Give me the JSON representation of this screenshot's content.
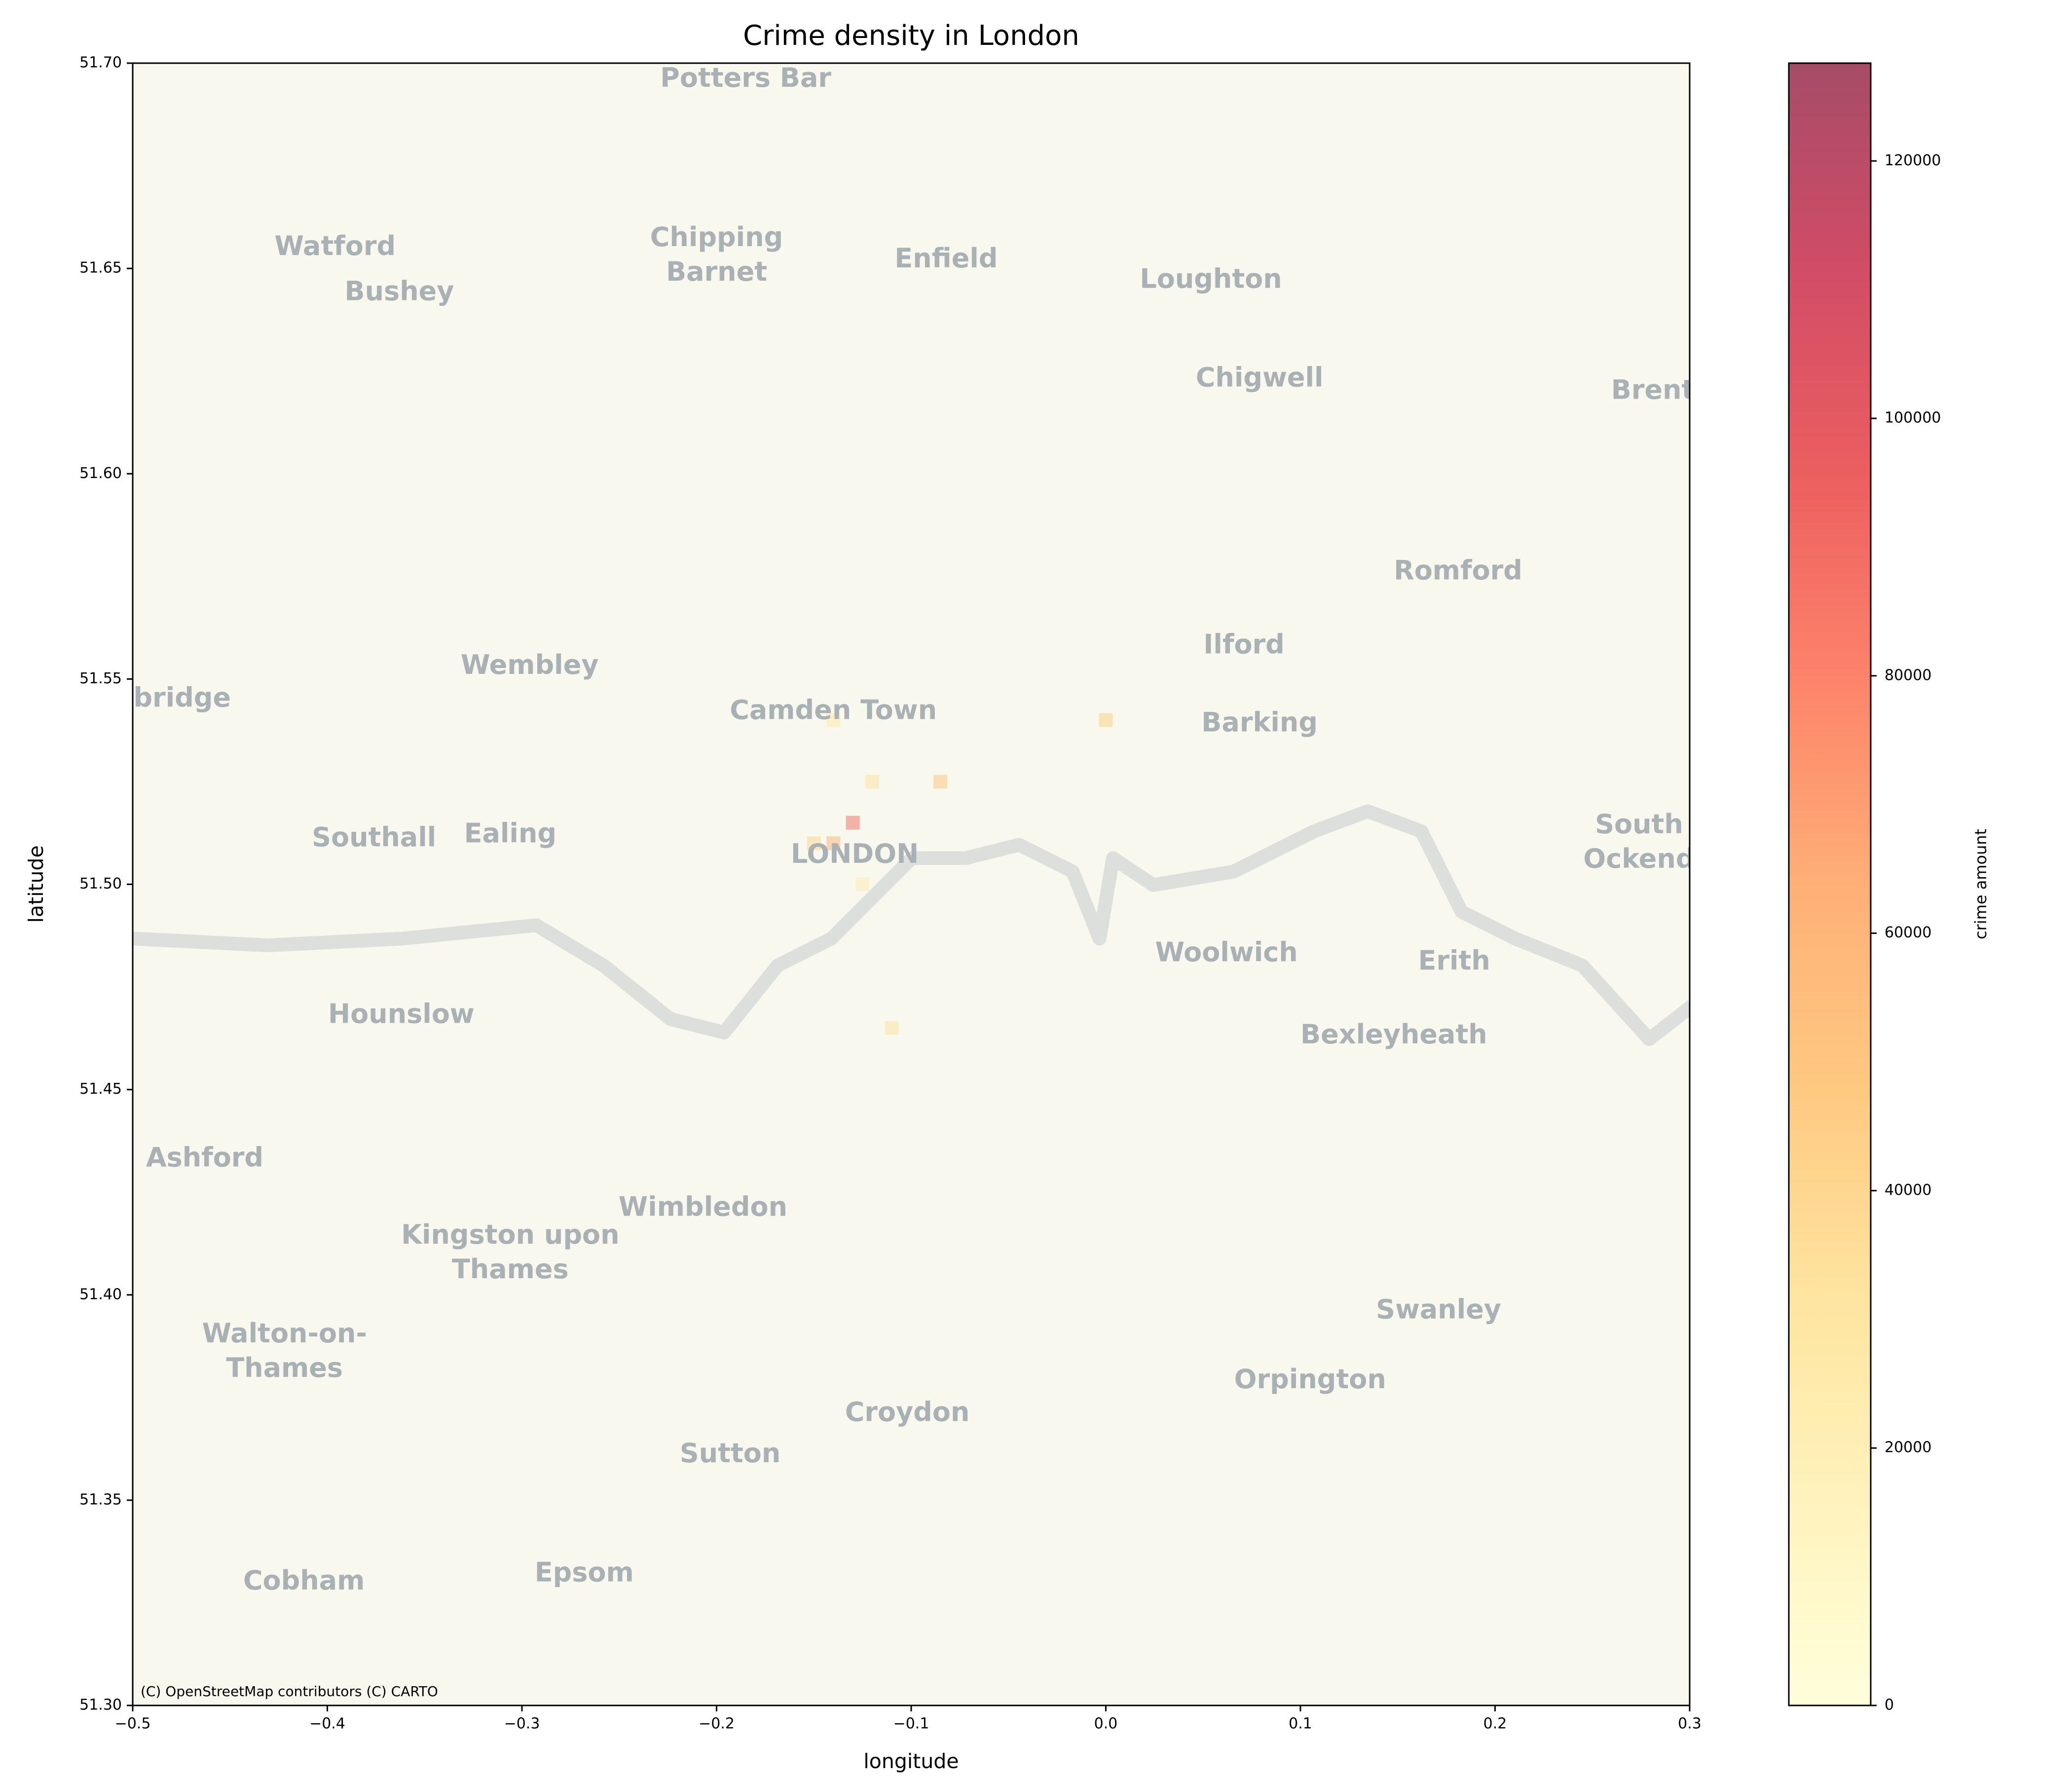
{
  "chart_data": {
    "type": "hist2d",
    "title": "Crime density in London",
    "x_label": "longitude",
    "y_label": "latitude",
    "xlim": [
      -0.5,
      0.3
    ],
    "ylim": [
      51.3,
      51.7
    ],
    "xticks": [
      {
        "value": -0.5,
        "label": "−0.5"
      },
      {
        "value": -0.4,
        "label": "−0.4"
      },
      {
        "value": -0.3,
        "label": "−0.3"
      },
      {
        "value": -0.2,
        "label": "−0.2"
      },
      {
        "value": -0.1,
        "label": "−0.1"
      },
      {
        "value": 0,
        "label": "0.0"
      },
      0.1,
      0.2,
      0.3
    ],
    "yticks": [
      {
        "value": 51.3,
        "label": "51.30"
      },
      51.35,
      {
        "value": 51.4,
        "label": "51.40"
      },
      51.45,
      {
        "value": 51.5,
        "label": "51.50"
      },
      51.55,
      {
        "value": 51.6,
        "label": "51.60"
      },
      51.65,
      {
        "value": 51.7,
        "label": "51.70"
      }
    ],
    "cells": {
      "x": [
        -0.14,
        -0.13,
        -0.15,
        -0.12,
        -0.085,
        0.0,
        -0.11,
        -0.14,
        -0.125
      ],
      "y": [
        51.51,
        51.515,
        51.51,
        51.525,
        51.525,
        51.54,
        51.465,
        51.54,
        51.5
      ],
      "values": [
        60000,
        90000,
        40000,
        30000,
        50000,
        45000,
        30000,
        25000,
        20000
      ]
    },
    "colorbar": {
      "label": "crime amount",
      "lim": [
        0,
        127600
      ],
      "ticks": [
        0,
        20000,
        40000,
        60000,
        80000,
        100000,
        120000
      ],
      "colors": [
        "#ffffcc",
        "#ffeda0",
        "#fed976",
        "#feb24c",
        "#fd8d3c",
        "#fc4e2a",
        "#e31a1c",
        "#bd0026",
        "#800026"
      ]
    },
    "attribution": "(C) OpenStreetMap contributors (C) CARTO",
    "map_labels": [
      {
        "lines": [
          "Potters Bar"
        ],
        "lon": -0.185,
        "lat": 51.696
      },
      {
        "lines": [
          "Watford"
        ],
        "lon": -0.396,
        "lat": 51.655
      },
      {
        "lines": [
          "Bushey"
        ],
        "lon": -0.363,
        "lat": 51.644
      },
      {
        "lines": [
          "Chipping",
          "Barnet"
        ],
        "lon": -0.2,
        "lat": 51.653
      },
      {
        "lines": [
          "Enfield"
        ],
        "lon": -0.082,
        "lat": 51.652
      },
      {
        "lines": [
          "Loughton"
        ],
        "lon": 0.054,
        "lat": 51.647
      },
      {
        "lines": [
          "Chigwell"
        ],
        "lon": 0.079,
        "lat": 51.623
      },
      {
        "lines": [
          "Brent"
        ],
        "lon": 0.281,
        "lat": 51.62
      },
      {
        "lines": [
          "Romford"
        ],
        "lon": 0.181,
        "lat": 51.576
      },
      {
        "lines": [
          "Ilford"
        ],
        "lon": 0.071,
        "lat": 51.558
      },
      {
        "lines": [
          "Wembley"
        ],
        "lon": -0.296,
        "lat": 51.553
      },
      {
        "lines": [
          "Camden Town"
        ],
        "lon": -0.14,
        "lat": 51.542
      },
      {
        "lines": [
          "Barking"
        ],
        "lon": 0.079,
        "lat": 51.539
      },
      {
        "lines": [
          "xbridge"
        ],
        "lon": -0.479,
        "lat": 51.545
      },
      {
        "lines": [
          "Southall"
        ],
        "lon": -0.376,
        "lat": 51.511
      },
      {
        "lines": [
          "Ealing"
        ],
        "lon": -0.306,
        "lat": 51.512
      },
      {
        "lines": [
          "LONDON"
        ],
        "lon": -0.129,
        "lat": 51.507
      },
      {
        "lines": [
          "South",
          "Ockend"
        ],
        "lon": 0.274,
        "lat": 51.51
      },
      {
        "lines": [
          "Woolwich"
        ],
        "lon": 0.062,
        "lat": 51.483
      },
      {
        "lines": [
          "Erith"
        ],
        "lon": 0.179,
        "lat": 51.481
      },
      {
        "lines": [
          "Hounslow"
        ],
        "lon": -0.362,
        "lat": 51.468
      },
      {
        "lines": [
          "Bexleyheath"
        ],
        "lon": 0.148,
        "lat": 51.463
      },
      {
        "lines": [
          "Ashford"
        ],
        "lon": -0.463,
        "lat": 51.433
      },
      {
        "lines": [
          "Wimbledon"
        ],
        "lon": -0.207,
        "lat": 51.421
      },
      {
        "lines": [
          "Kingston upon",
          "Thames"
        ],
        "lon": -0.306,
        "lat": 51.41
      },
      {
        "lines": [
          "Swanley"
        ],
        "lon": 0.171,
        "lat": 51.396
      },
      {
        "lines": [
          "Walton-on-",
          "Thames"
        ],
        "lon": -0.422,
        "lat": 51.386
      },
      {
        "lines": [
          "Orpington"
        ],
        "lon": 0.105,
        "lat": 51.379
      },
      {
        "lines": [
          "Croydon"
        ],
        "lon": -0.102,
        "lat": 51.371
      },
      {
        "lines": [
          "Sutton"
        ],
        "lon": -0.193,
        "lat": 51.361
      },
      {
        "lines": [
          "Cobham"
        ],
        "lon": -0.412,
        "lat": 51.33
      },
      {
        "lines": [
          "Epsom"
        ],
        "lon": -0.268,
        "lat": 51.332
      }
    ]
  }
}
